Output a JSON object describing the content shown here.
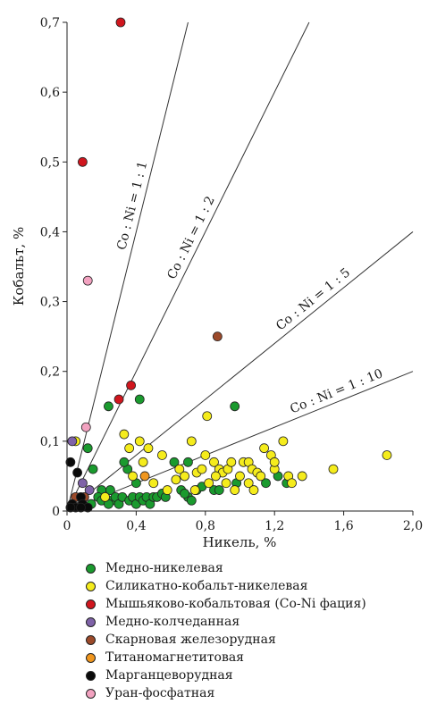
{
  "chart_data": {
    "type": "scatter",
    "xlabel": "Никель, %",
    "ylabel": "Кобальт, %",
    "xlim": [
      0,
      2.0
    ],
    "ylim": [
      0,
      0.7
    ],
    "x_ticks": [
      "0",
      "0,4",
      "0,8",
      "1,2",
      "1,6",
      "2,0"
    ],
    "y_ticks": [
      "0",
      "0,1",
      "0,2",
      "0,3",
      "0,4",
      "0,5",
      "0,6",
      "0,7"
    ],
    "x_tick_values": [
      0,
      0.4,
      0.8,
      1.2,
      1.6,
      2.0
    ],
    "y_tick_values": [
      0,
      0.1,
      0.2,
      0.3,
      0.4,
      0.5,
      0.6,
      0.7
    ],
    "grid": false,
    "legend_position": "bottom",
    "ratio_lines": [
      {
        "label": "Co : Ni = 1 : 1",
        "slope": 1.0
      },
      {
        "label": "Co : Ni = 1 : 2",
        "slope": 0.5
      },
      {
        "label": "Co : Ni = 1 : 5",
        "slope": 0.2
      },
      {
        "label": "Co : Ni = 1 : 10",
        "slope": 0.1
      }
    ],
    "series": [
      {
        "name": "Медно-никелевая",
        "color": "#1a9a2e",
        "points": [
          [
            0.24,
            0.15
          ],
          [
            0.42,
            0.16
          ],
          [
            0.97,
            0.15
          ],
          [
            0.12,
            0.09
          ],
          [
            0.15,
            0.06
          ],
          [
            0.35,
            0.06
          ],
          [
            0.33,
            0.07
          ],
          [
            0.62,
            0.07
          ],
          [
            0.7,
            0.07
          ],
          [
            0.4,
            0.04
          ],
          [
            0.2,
            0.03
          ],
          [
            0.25,
            0.03
          ],
          [
            0.66,
            0.03
          ],
          [
            0.7,
            0.02
          ],
          [
            0.75,
            0.03
          ],
          [
            0.85,
            0.03
          ],
          [
            0.88,
            0.03
          ],
          [
            0.98,
            0.04
          ],
          [
            1.15,
            0.04
          ],
          [
            1.22,
            0.05
          ],
          [
            1.27,
            0.04
          ],
          [
            0.18,
            0.02
          ],
          [
            0.22,
            0.02
          ],
          [
            0.26,
            0.015
          ],
          [
            0.28,
            0.02
          ],
          [
            0.3,
            0.01
          ],
          [
            0.32,
            0.02
          ],
          [
            0.36,
            0.015
          ],
          [
            0.38,
            0.02
          ],
          [
            0.4,
            0.01
          ],
          [
            0.42,
            0.02
          ],
          [
            0.44,
            0.015
          ],
          [
            0.46,
            0.02
          ],
          [
            0.48,
            0.01
          ],
          [
            0.5,
            0.02
          ],
          [
            0.52,
            0.02
          ],
          [
            0.55,
            0.025
          ],
          [
            0.57,
            0.02
          ],
          [
            0.14,
            0.01
          ],
          [
            0.2,
            0.015
          ],
          [
            0.24,
            0.01
          ],
          [
            0.68,
            0.025
          ],
          [
            0.72,
            0.015
          ],
          [
            0.78,
            0.035
          ]
        ]
      },
      {
        "name": "Силикатно-кобальт-никелевая",
        "color": "#f5ec1c",
        "points": [
          [
            0.05,
            0.1
          ],
          [
            0.33,
            0.11
          ],
          [
            0.36,
            0.09
          ],
          [
            0.42,
            0.1
          ],
          [
            0.47,
            0.09
          ],
          [
            0.44,
            0.07
          ],
          [
            0.55,
            0.08
          ],
          [
            0.72,
            0.1
          ],
          [
            0.8,
            0.08
          ],
          [
            0.81,
            0.136
          ],
          [
            0.85,
            0.07
          ],
          [
            0.88,
            0.06
          ],
          [
            0.9,
            0.055
          ],
          [
            0.93,
            0.06
          ],
          [
            0.95,
            0.07
          ],
          [
            1.0,
            0.05
          ],
          [
            1.02,
            0.07
          ],
          [
            1.05,
            0.07
          ],
          [
            1.07,
            0.06
          ],
          [
            1.1,
            0.055
          ],
          [
            1.14,
            0.09
          ],
          [
            1.18,
            0.08
          ],
          [
            1.2,
            0.06
          ],
          [
            1.25,
            0.1
          ],
          [
            1.28,
            0.05
          ],
          [
            1.3,
            0.04
          ],
          [
            1.36,
            0.05
          ],
          [
            1.54,
            0.06
          ],
          [
            1.85,
            0.08
          ],
          [
            0.65,
            0.06
          ],
          [
            0.68,
            0.05
          ],
          [
            0.75,
            0.055
          ],
          [
            0.78,
            0.06
          ],
          [
            0.82,
            0.04
          ],
          [
            0.92,
            0.04
          ],
          [
            1.05,
            0.04
          ],
          [
            1.08,
            0.03
          ],
          [
            1.12,
            0.05
          ],
          [
            1.2,
            0.07
          ],
          [
            0.58,
            0.03
          ],
          [
            0.63,
            0.045
          ],
          [
            0.74,
            0.03
          ],
          [
            0.86,
            0.05
          ],
          [
            0.97,
            0.03
          ],
          [
            0.38,
            0.05
          ],
          [
            0.5,
            0.04
          ],
          [
            0.22,
            0.02
          ]
        ]
      },
      {
        "name": "Мышьяково-кобальтовая (Co-Ni фация)",
        "color": "#d0161e",
        "points": [
          [
            0.31,
            0.7
          ],
          [
            0.09,
            0.5
          ],
          [
            0.37,
            0.18
          ],
          [
            0.3,
            0.16
          ]
        ]
      },
      {
        "name": "Медно-колчеданная",
        "color": "#7f62a8",
        "points": [
          [
            0.03,
            0.1
          ],
          [
            0.09,
            0.04
          ],
          [
            0.13,
            0.03
          ]
        ]
      },
      {
        "name": "Скарновая железорудная",
        "color": "#9c4a2a",
        "points": [
          [
            0.87,
            0.25
          ],
          [
            0.05,
            0.02
          ],
          [
            0.1,
            0.02
          ]
        ]
      },
      {
        "name": "Титаномагнетитовая",
        "color": "#f0961e",
        "points": [
          [
            0.45,
            0.05
          ]
        ]
      },
      {
        "name": "Марганцеворудная",
        "color": "#0a0a0a",
        "points": [
          [
            0.02,
            0.07
          ],
          [
            0.06,
            0.055
          ],
          [
            0.08,
            0.02
          ],
          [
            0.09,
            0.01
          ],
          [
            0.12,
            0.005
          ],
          [
            0.03,
            0.01
          ],
          [
            0.05,
            0.005
          ],
          [
            0.02,
            0.005
          ],
          [
            0.08,
            0.005
          ]
        ]
      },
      {
        "name": "Уран-фосфатная",
        "color": "#f2a2c0",
        "points": [
          [
            0.12,
            0.33
          ],
          [
            0.11,
            0.12
          ]
        ]
      }
    ]
  }
}
